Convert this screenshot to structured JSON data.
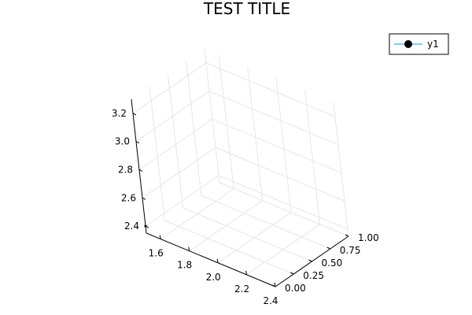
{
  "chart_data": {
    "type": "scatter",
    "title": "TEST TITLE",
    "xlabel": "",
    "ylabel": "",
    "zlabel": "",
    "xlim": [
      1.5,
      2.4
    ],
    "ylim": [
      0.0,
      1.0
    ],
    "zlim": [
      2.35,
      3.3
    ],
    "x_ticks": [
      "1.6",
      "1.8",
      "2.0",
      "2.2",
      "2.4"
    ],
    "y_ticks": [
      "0.00",
      "0.25",
      "0.50",
      "0.75",
      "1.00"
    ],
    "z_ticks": [
      "2.4",
      "2.6",
      "2.8",
      "3.0",
      "3.2"
    ],
    "x_tick_values": [
      1.6,
      1.8,
      2.0,
      2.2,
      2.4
    ],
    "y_tick_values": [
      0.0,
      0.25,
      0.5,
      0.75,
      1.0
    ],
    "z_tick_values": [
      2.4,
      2.6,
      2.8,
      3.0,
      3.2
    ],
    "grid": true,
    "legend": "top-right",
    "series": [
      {
        "name": "y1",
        "color": "#009af9",
        "marker_color": "#000000",
        "points": [
          {
            "x": 1.5,
            "y": 0.0,
            "z": 2.4
          }
        ]
      }
    ]
  }
}
